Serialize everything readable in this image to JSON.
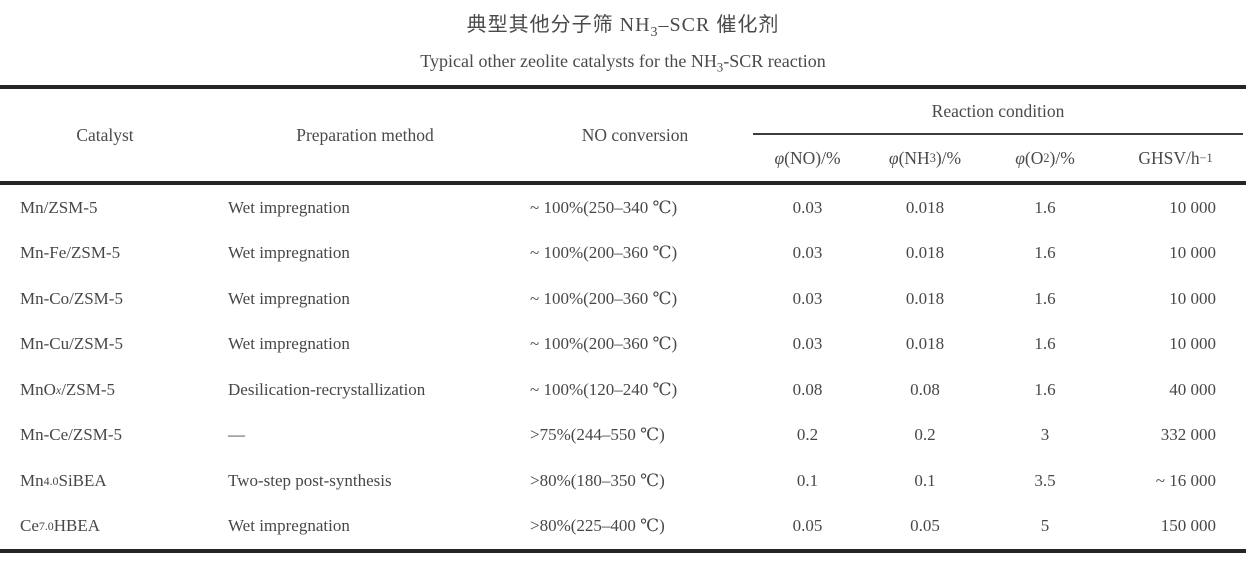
{
  "title": {
    "zh": "典型其他分子筛 NH<sub>3</sub>–SCR 催化剂",
    "en": "Typical other zeolite catalysts for the NH<sub>3</sub>-SCR reaction"
  },
  "table": {
    "columns": {
      "catalyst": "Catalyst",
      "preparation": "Preparation method",
      "no_conversion": "NO conversion",
      "reaction_condition": "Reaction condition",
      "phi_no": "<i>φ</i>(NO)/%",
      "phi_nh3": "<i>φ</i>(NH<sub>3</sub>)/%",
      "phi_o2": "<i>φ</i>(O<sub>2</sub>)/%",
      "ghsv": "GHSV/h<sup>−1</sup>"
    },
    "rows": [
      {
        "catalyst": "Mn/ZSM-5",
        "preparation": "Wet impregnation",
        "no_conversion": "~ 100%(250–340 ℃)",
        "phi_no": "0.03",
        "phi_nh3": "0.018",
        "phi_o2": "1.6",
        "ghsv": "10 000"
      },
      {
        "catalyst": "Mn-Fe/ZSM-5",
        "preparation": "Wet impregnation",
        "no_conversion": "~ 100%(200–360 ℃)",
        "phi_no": "0.03",
        "phi_nh3": "0.018",
        "phi_o2": "1.6",
        "ghsv": "10 000"
      },
      {
        "catalyst": "Mn-Co/ZSM-5",
        "preparation": "Wet impregnation",
        "no_conversion": "~ 100%(200–360 ℃)",
        "phi_no": "0.03",
        "phi_nh3": "0.018",
        "phi_o2": "1.6",
        "ghsv": "10 000"
      },
      {
        "catalyst": "Mn-Cu/ZSM-5",
        "preparation": "Wet impregnation",
        "no_conversion": "~ 100%(200–360 ℃)",
        "phi_no": "0.03",
        "phi_nh3": "0.018",
        "phi_o2": "1.6",
        "ghsv": "10 000"
      },
      {
        "catalyst": "MnO<sub><i>x</i></sub>/ZSM-5",
        "preparation": "Desilication-recrystallization",
        "no_conversion": "~ 100%(120–240 ℃)",
        "phi_no": "0.08",
        "phi_nh3": "0.08",
        "phi_o2": "1.6",
        "ghsv": "40 000"
      },
      {
        "catalyst": "Mn-Ce/ZSM-5",
        "preparation": "—",
        "no_conversion": ">75%(244–550 ℃)",
        "phi_no": "0.2",
        "phi_nh3": "0.2",
        "phi_o2": "3",
        "ghsv": "332 000"
      },
      {
        "catalyst": "Mn<sub>4.0</sub>SiBEA",
        "preparation": "Two-step post-synthesis",
        "no_conversion": ">80%(180–350 ℃)",
        "phi_no": "0.1",
        "phi_nh3": "0.1",
        "phi_o2": "3.5",
        "ghsv": "~ 16 000"
      },
      {
        "catalyst": "Ce<sub>7.0</sub>HBEA",
        "preparation": "Wet impregnation",
        "no_conversion": ">80%(225–400 ℃)",
        "phi_no": "0.05",
        "phi_nh3": "0.05",
        "phi_o2": "5",
        "ghsv": "150 000"
      }
    ]
  },
  "colors": {
    "background": "#ffffff",
    "text": "#474747",
    "rule_thick": "#252525",
    "rule_thin": "#3d3d3d"
  }
}
